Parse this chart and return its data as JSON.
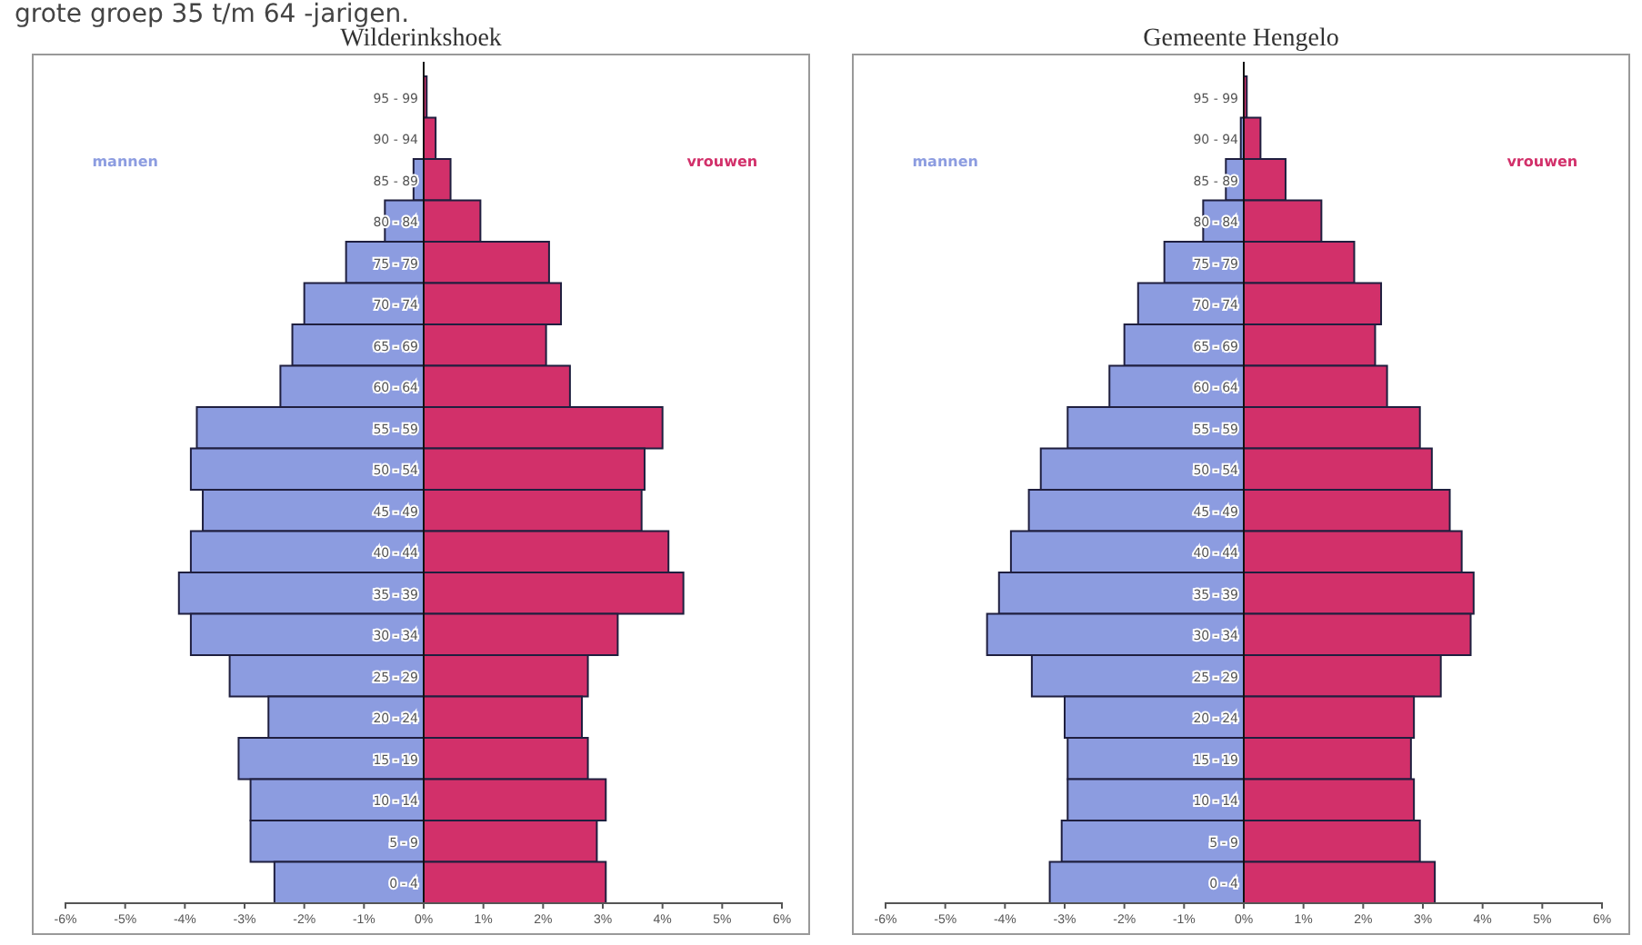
{
  "chart_data": [
    {
      "type": "bar",
      "orientation": "horizontal",
      "title": "Wilderinkshoek",
      "stacked": true,
      "annotations": [
        "grote groep 35 t/m 64 -jarigen."
      ],
      "categories": [
        "95 - 99",
        "90 - 94",
        "85 - 89",
        "80 - 84",
        "75 - 79",
        "70 - 74",
        "65 - 69",
        "60 - 64",
        "55 - 59",
        "50 - 54",
        "45 - 49",
        "40 - 44",
        "35 - 39",
        "30 - 34",
        "25 - 29",
        "20 - 24",
        "15 - 19",
        "10 - 14",
        "5 - 9",
        "0 - 4"
      ],
      "series": [
        {
          "name": "mannen",
          "color": "#8c9ce0",
          "values": [
            0,
            0,
            -0.17,
            -0.65,
            -1.3,
            -2.0,
            -2.2,
            -2.4,
            -3.8,
            -3.9,
            -3.7,
            -3.9,
            -4.1,
            -3.9,
            -3.25,
            -2.6,
            -3.1,
            -2.9,
            -2.9,
            -2.5
          ]
        },
        {
          "name": "vrouwen",
          "color": "#d2306a",
          "values": [
            0.05,
            0.2,
            0.45,
            0.95,
            2.1,
            2.3,
            2.05,
            2.45,
            4.0,
            3.7,
            3.65,
            4.1,
            4.35,
            3.25,
            2.75,
            2.65,
            2.75,
            3.05,
            2.9,
            3.05
          ]
        }
      ],
      "xlim": [
        -6,
        6
      ],
      "xticks": [
        {
          "value": -6,
          "label": "-6%"
        },
        {
          "value": -5,
          "label": "-5%"
        },
        {
          "value": -4,
          "label": "-4%"
        },
        {
          "value": -3,
          "label": "-3%"
        },
        {
          "value": -2,
          "label": "-2%"
        },
        {
          "value": -1,
          "label": "-1%"
        },
        {
          "value": 0,
          "label": "0%"
        },
        {
          "value": 1,
          "label": "1%"
        },
        {
          "value": 2,
          "label": "2%"
        },
        {
          "value": 3,
          "label": "3%"
        },
        {
          "value": 4,
          "label": "4%"
        },
        {
          "value": 5,
          "label": "5%"
        },
        {
          "value": 6,
          "label": "6%"
        }
      ],
      "grid": false
    },
    {
      "type": "bar",
      "orientation": "horizontal",
      "title": "Gemeente Hengelo",
      "stacked": true,
      "categories": [
        "95 - 99",
        "90 - 94",
        "85 - 89",
        "80 - 84",
        "75 - 79",
        "70 - 74",
        "65 - 69",
        "60 - 64",
        "55 - 59",
        "50 - 54",
        "45 - 49",
        "40 - 44",
        "35 - 39",
        "30 - 34",
        "25 - 29",
        "20 - 24",
        "15 - 19",
        "10 - 14",
        "5 - 9",
        "0 - 4"
      ],
      "series": [
        {
          "name": "mannen",
          "color": "#8c9ce0",
          "values": [
            0,
            -0.05,
            -0.3,
            -0.68,
            -1.33,
            -1.77,
            -2.0,
            -2.25,
            -2.95,
            -3.4,
            -3.6,
            -3.9,
            -4.1,
            -4.3,
            -3.55,
            -3.0,
            -2.95,
            -2.95,
            -3.05,
            -3.25
          ]
        },
        {
          "name": "vrouwen",
          "color": "#d2306a",
          "values": [
            0.05,
            0.28,
            0.7,
            1.3,
            1.85,
            2.3,
            2.2,
            2.4,
            2.95,
            3.15,
            3.45,
            3.65,
            3.85,
            3.8,
            3.3,
            2.85,
            2.8,
            2.85,
            2.95,
            3.2
          ]
        }
      ],
      "xlim": [
        -6,
        6
      ],
      "xticks": [
        {
          "value": -6,
          "label": "-6%"
        },
        {
          "value": -5,
          "label": "-5%"
        },
        {
          "value": -4,
          "label": "-4%"
        },
        {
          "value": -3,
          "label": "-3%"
        },
        {
          "value": -2,
          "label": "-2%"
        },
        {
          "value": -1,
          "label": "-1%"
        },
        {
          "value": 0,
          "label": "0%"
        },
        {
          "value": 1,
          "label": "1%"
        },
        {
          "value": 2,
          "label": "2%"
        },
        {
          "value": 3,
          "label": "3%"
        },
        {
          "value": 4,
          "label": "4%"
        },
        {
          "value": 5,
          "label": "5%"
        },
        {
          "value": 6,
          "label": "6%"
        }
      ],
      "grid": false
    }
  ]
}
